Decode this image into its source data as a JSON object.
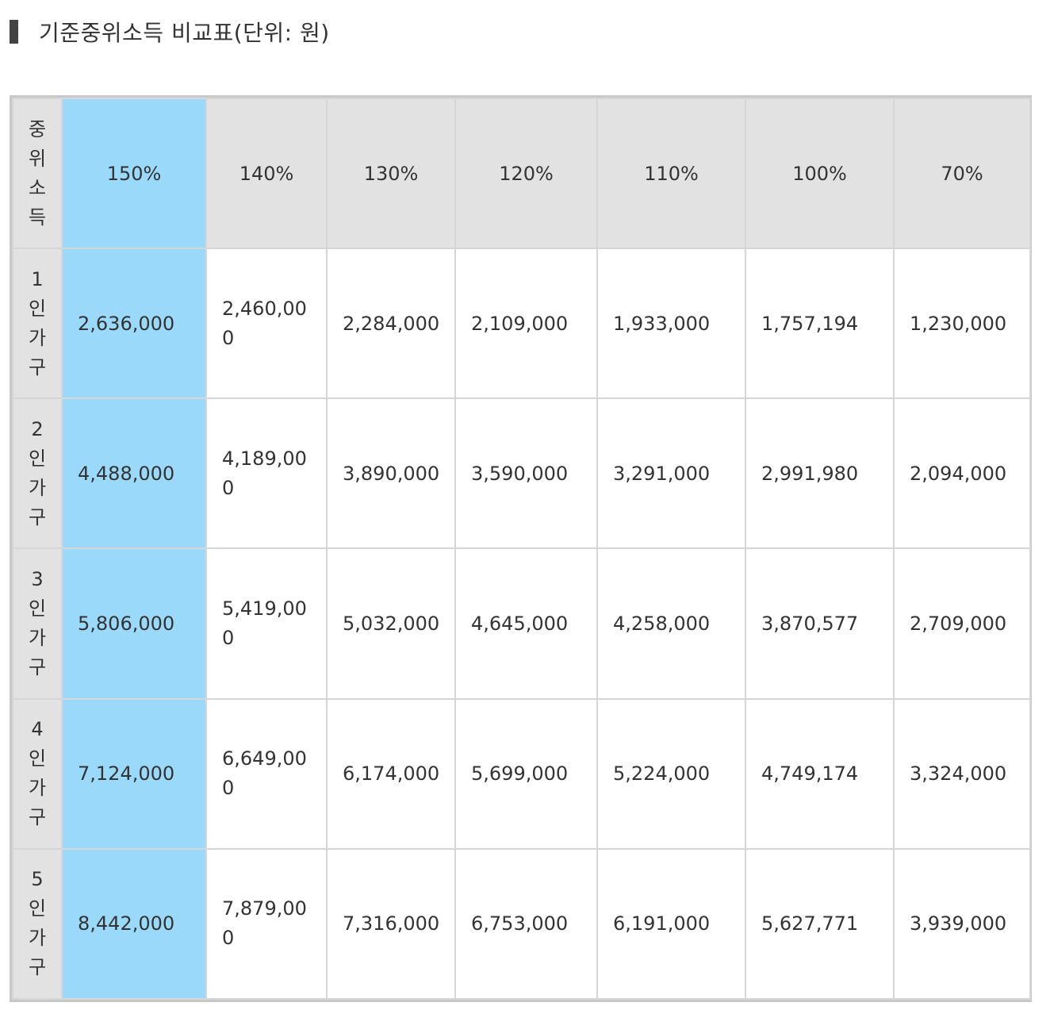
{
  "heading": {
    "title": "기준중위소득 비교표(단위: 원)"
  },
  "table": {
    "corner_label": "중위소득",
    "columns": [
      "150%",
      "140%",
      "130%",
      "120%",
      "110%",
      "100%",
      "70%"
    ],
    "rows": [
      {
        "label": "1인가구",
        "values": [
          "2,636,000",
          "2,460,000",
          "2,284,000",
          "2,109,000",
          "1,933,000",
          "1,757,194",
          "1,230,000"
        ]
      },
      {
        "label": "2인가구",
        "values": [
          "4,488,000",
          "4,189,000",
          "3,890,000",
          "3,590,000",
          "3,291,000",
          "2,991,980",
          "2,094,000"
        ]
      },
      {
        "label": "3인가구",
        "values": [
          "5,806,000",
          "5,419,000",
          "5,032,000",
          "4,645,000",
          "4,258,000",
          "3,870,577",
          "2,709,000"
        ]
      },
      {
        "label": "4인가구",
        "values": [
          "7,124,000",
          "6,649,000",
          "6,174,000",
          "5,699,000",
          "5,224,000",
          "4,749,174",
          "3,324,000"
        ]
      },
      {
        "label": "5인가구",
        "values": [
          "8,442,000",
          "7,879,000",
          "7,316,000",
          "6,753,000",
          "6,191,000",
          "5,627,771",
          "3,939,000"
        ]
      }
    ]
  },
  "colors": {
    "highlight_column": "#9bd9fb",
    "header_background": "#e2e2e2",
    "border": "#c8c8c8"
  }
}
